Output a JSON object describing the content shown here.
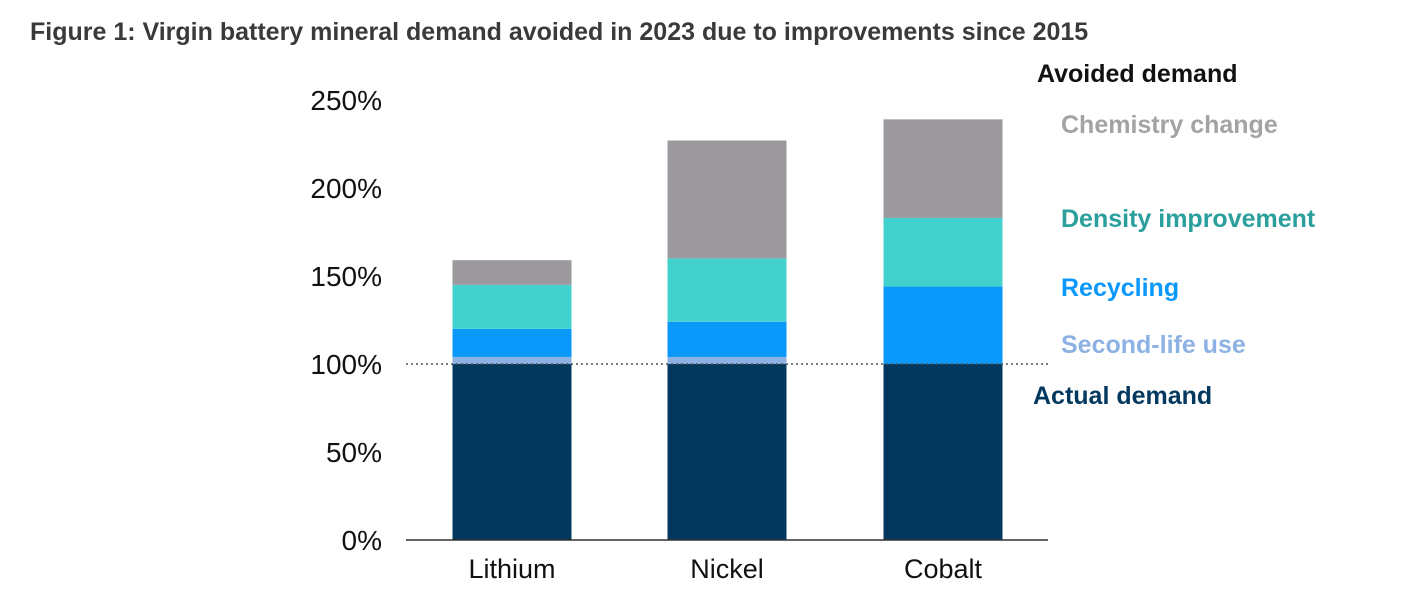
{
  "chart_data": {
    "type": "bar",
    "stacked": true,
    "title": "Figure 1: Virgin battery mineral demand avoided in 2023 due to improvements since 2015",
    "xlabel": "",
    "ylabel": "",
    "ylim": [
      0,
      250
    ],
    "y_ticks": [
      "0%",
      "50%",
      "100%",
      "150%",
      "200%",
      "250%"
    ],
    "y_tick_values": [
      0,
      50,
      100,
      150,
      200,
      250
    ],
    "categories": [
      "Lithium",
      "Nickel",
      "Cobalt"
    ],
    "reference_line": {
      "value": 100,
      "style": "dotted"
    },
    "legend_heading": "Avoided demand",
    "series": [
      {
        "name": "Actual demand",
        "key": "actual",
        "color": "#02385e",
        "values": [
          100,
          100,
          100
        ]
      },
      {
        "name": "Second-life use",
        "key": "second_life",
        "color": "#8cb1e2",
        "values": [
          4,
          4,
          0
        ]
      },
      {
        "name": "Recycling",
        "key": "recycling",
        "color": "#0b98fb",
        "values": [
          16,
          20,
          44
        ]
      },
      {
        "name": "Density improvement",
        "key": "density",
        "color": "#43d1ce",
        "values": [
          25,
          36,
          39
        ]
      },
      {
        "name": "Chemistry change",
        "key": "chemistry",
        "color": "#9c9a9e",
        "values": [
          14,
          67,
          56
        ]
      }
    ],
    "legend_colors": {
      "heading": "#111111",
      "chemistry": "#a3a3a3",
      "density": "#2a9f9c",
      "recycling": "#0b98fb",
      "second_life": "#8cb1e2",
      "actual": "#02385e"
    }
  }
}
